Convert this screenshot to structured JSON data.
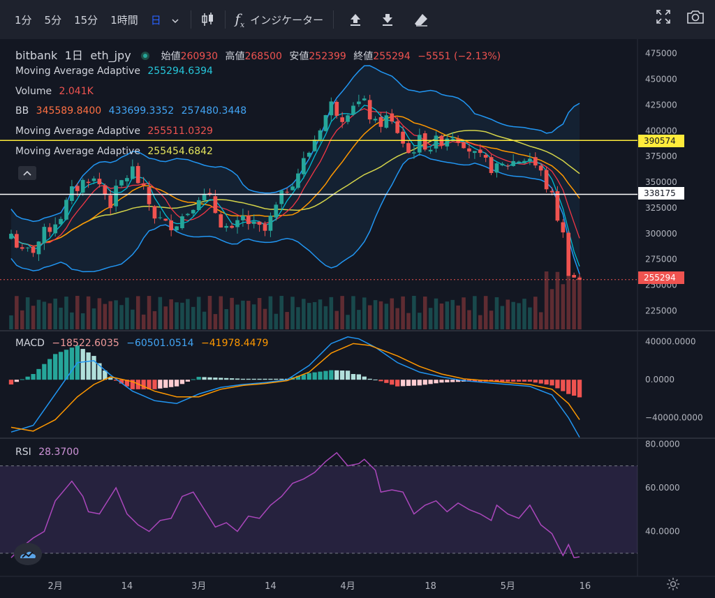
{
  "toolbar": {
    "timeframes": [
      "1分",
      "5分",
      "15分",
      "1時間"
    ],
    "active_interval": "日",
    "indicators_label": "インジケーター",
    "fx_glyph": "f",
    "fx_glyph_sub": "x"
  },
  "legend": {
    "exchange": "bitbank",
    "interval": "1日",
    "pair": "eth_jpy",
    "open_label": "始値",
    "open": "260930",
    "high_label": "高値",
    "high": "268500",
    "low_label": "安値",
    "low": "252399",
    "close_label": "終値",
    "close": "255294",
    "change": "−5551 (−2.13%)",
    "ma1_name": "Moving Average Adaptive",
    "ma1_value": "255294.6394",
    "volume_name": "Volume",
    "volume_value": "2.041K",
    "bb_name": "BB",
    "bb_basis": "345589.8400",
    "bb_upper": "433699.3352",
    "bb_lower": "257480.3448",
    "ma2_name": "Moving Average Adaptive",
    "ma2_value": "255511.0329",
    "ma3_name": "Moving Average Adaptive",
    "ma3_value": "255454.6842",
    "macd_name": "MACD",
    "macd_hist": "−18522.6035",
    "macd_line": "−60501.0514",
    "macd_signal": "−41978.4479",
    "rsi_name": "RSI",
    "rsi_value": "28.3700"
  },
  "price_tags": {
    "yellow_line": "390574",
    "white_line": "338175",
    "last_price": "255294"
  },
  "colors": {
    "background": "#131722",
    "up": "#26a69a",
    "down": "#ef5350",
    "bb": "#2196f3",
    "ma_fast": "#00bcd4",
    "ma_mid": "#ff9800",
    "ma_slow": "#d4d44a",
    "ma_red": "#f23645",
    "rsi": "#ab47bc",
    "yellow_line": "#ffeb3b"
  },
  "chart_data": {
    "type": "candlestick",
    "symbol": "eth_jpy",
    "interval": "1日",
    "price_axis": {
      "ticks": [
        475000,
        450000,
        425000,
        400000,
        375000,
        350000,
        325000,
        300000,
        275000,
        250000,
        225000
      ],
      "tick_labels": [
        "475000",
        "450000",
        "425000",
        "400000",
        "375000",
        "350000",
        "325000",
        "300000",
        "275000",
        "250000",
        "225000"
      ],
      "range": [
        207000,
        489000
      ]
    },
    "time_axis": {
      "labels": [
        "2月",
        "14",
        "3月",
        "14",
        "4月",
        "18",
        "5月",
        "16"
      ],
      "label_positions": [
        8,
        21,
        34,
        47,
        61,
        76,
        90,
        104
      ],
      "n_bars": 114
    },
    "horizontal_lines": [
      {
        "price": 390574,
        "color": "#ffeb3b"
      },
      {
        "price": 338175,
        "color": "#ffffff"
      }
    ],
    "last_price": 255294,
    "close_anchors": [
      [
        0,
        300000
      ],
      [
        2,
        280000
      ],
      [
        4,
        285000
      ],
      [
        6,
        300000
      ],
      [
        9,
        318000
      ],
      [
        11,
        340000
      ],
      [
        14,
        355000
      ],
      [
        16,
        348000
      ],
      [
        18,
        330000
      ],
      [
        20,
        350000
      ],
      [
        22,
        362000
      ],
      [
        24,
        340000
      ],
      [
        26,
        318000
      ],
      [
        28,
        308000
      ],
      [
        30,
        312000
      ],
      [
        32,
        322000
      ],
      [
        34,
        338000
      ],
      [
        36,
        332000
      ],
      [
        38,
        312000
      ],
      [
        40,
        300000
      ],
      [
        42,
        315000
      ],
      [
        44,
        306000
      ],
      [
        46,
        302000
      ],
      [
        48,
        325000
      ],
      [
        50,
        345000
      ],
      [
        52,
        360000
      ],
      [
        54,
        380000
      ],
      [
        56,
        405000
      ],
      [
        58,
        425000
      ],
      [
        60,
        415000
      ],
      [
        62,
        428000
      ],
      [
        64,
        425000
      ],
      [
        66,
        405000
      ],
      [
        68,
        412000
      ],
      [
        70,
        400000
      ],
      [
        72,
        378000
      ],
      [
        74,
        390000
      ],
      [
        76,
        385000
      ],
      [
        78,
        392000
      ],
      [
        80,
        398000
      ],
      [
        82,
        390000
      ],
      [
        84,
        375000
      ],
      [
        86,
        368000
      ],
      [
        88,
        362000
      ],
      [
        90,
        368000
      ],
      [
        92,
        372000
      ],
      [
        94,
        374000
      ],
      [
        96,
        358000
      ],
      [
        98,
        335000
      ],
      [
        100,
        298000
      ],
      [
        101,
        265000
      ],
      [
        102,
        258000
      ],
      [
        103,
        255294
      ]
    ],
    "macd": {
      "axis_ticks": [
        40000,
        0,
        -40000
      ],
      "axis_labels": [
        "40000.0000",
        "0.0000",
        "−40000.0000"
      ],
      "range": [
        -60000,
        50000
      ],
      "macd_line": [
        [
          0,
          -55000
        ],
        [
          4,
          -48000
        ],
        [
          8,
          -15000
        ],
        [
          12,
          18000
        ],
        [
          15,
          20000
        ],
        [
          18,
          5000
        ],
        [
          22,
          -12000
        ],
        [
          26,
          -22000
        ],
        [
          30,
          -25000
        ],
        [
          34,
          -15000
        ],
        [
          38,
          -8000
        ],
        [
          42,
          -5000
        ],
        [
          46,
          -3000
        ],
        [
          50,
          0
        ],
        [
          54,
          15000
        ],
        [
          58,
          38000
        ],
        [
          61,
          45000
        ],
        [
          63,
          43000
        ],
        [
          66,
          34000
        ],
        [
          70,
          18000
        ],
        [
          74,
          8000
        ],
        [
          78,
          3000
        ],
        [
          82,
          -1000
        ],
        [
          86,
          -3000
        ],
        [
          90,
          -5000
        ],
        [
          94,
          -7000
        ],
        [
          98,
          -16000
        ],
        [
          101,
          -40000
        ],
        [
          103,
          -60500
        ]
      ],
      "signal_line": [
        [
          0,
          -50000
        ],
        [
          4,
          -54000
        ],
        [
          8,
          -42000
        ],
        [
          12,
          -18000
        ],
        [
          15,
          -5000
        ],
        [
          18,
          3000
        ],
        [
          22,
          -2000
        ],
        [
          26,
          -12000
        ],
        [
          30,
          -18000
        ],
        [
          34,
          -18000
        ],
        [
          38,
          -10000
        ],
        [
          42,
          -6000
        ],
        [
          46,
          -4000
        ],
        [
          50,
          -1000
        ],
        [
          54,
          8000
        ],
        [
          58,
          28000
        ],
        [
          62,
          38000
        ],
        [
          65,
          36000
        ],
        [
          70,
          25000
        ],
        [
          74,
          14000
        ],
        [
          78,
          6000
        ],
        [
          82,
          1000
        ],
        [
          86,
          -1000
        ],
        [
          90,
          -3000
        ],
        [
          94,
          -5000
        ],
        [
          98,
          -10000
        ],
        [
          101,
          -25000
        ],
        [
          103,
          -42000
        ]
      ]
    },
    "rsi": {
      "axis_ticks": [
        80,
        60,
        40
      ],
      "axis_labels": [
        "80.0000",
        "60.0000",
        "40.0000"
      ],
      "range": [
        22,
        82
      ],
      "upper_band": 70,
      "lower_band": 30,
      "series": [
        [
          0,
          28
        ],
        [
          2,
          33
        ],
        [
          4,
          37
        ],
        [
          6,
          40
        ],
        [
          8,
          54
        ],
        [
          10,
          60
        ],
        [
          11,
          63
        ],
        [
          13,
          56
        ],
        [
          14,
          49
        ],
        [
          16,
          48
        ],
        [
          18,
          56
        ],
        [
          19,
          60
        ],
        [
          21,
          48
        ],
        [
          23,
          43
        ],
        [
          25,
          40
        ],
        [
          27,
          45
        ],
        [
          29,
          46
        ],
        [
          31,
          56
        ],
        [
          33,
          58
        ],
        [
          35,
          50
        ],
        [
          37,
          42
        ],
        [
          39,
          44
        ],
        [
          41,
          40
        ],
        [
          43,
          47
        ],
        [
          45,
          46
        ],
        [
          47,
          52
        ],
        [
          49,
          56
        ],
        [
          51,
          62
        ],
        [
          53,
          64
        ],
        [
          55,
          67
        ],
        [
          57,
          72
        ],
        [
          59,
          76
        ],
        [
          61,
          70
        ],
        [
          63,
          71
        ],
        [
          64,
          73
        ],
        [
          66,
          68
        ],
        [
          67,
          58
        ],
        [
          69,
          59
        ],
        [
          71,
          58
        ],
        [
          73,
          48
        ],
        [
          75,
          52
        ],
        [
          77,
          54
        ],
        [
          79,
          49
        ],
        [
          81,
          53
        ],
        [
          83,
          50
        ],
        [
          85,
          48
        ],
        [
          87,
          45
        ],
        [
          88,
          52
        ],
        [
          90,
          48
        ],
        [
          92,
          46
        ],
        [
          94,
          52
        ],
        [
          96,
          43
        ],
        [
          98,
          39
        ],
        [
          100,
          29
        ],
        [
          101,
          34
        ],
        [
          102,
          28
        ],
        [
          103,
          28.37
        ]
      ]
    }
  }
}
